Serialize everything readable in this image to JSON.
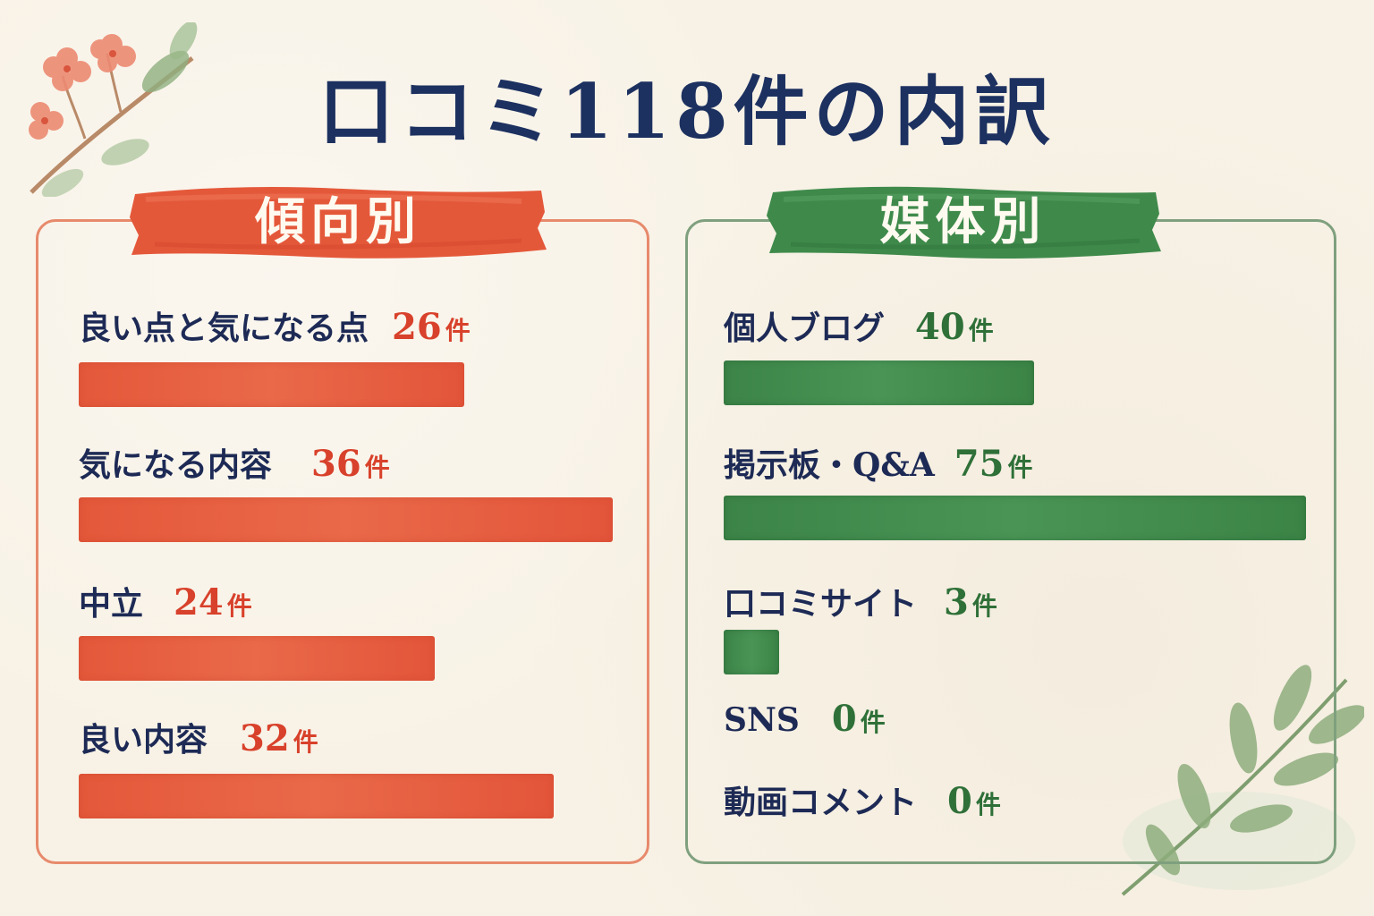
{
  "title": "口コミ118件の内訳",
  "colors": {
    "title": "#1d3160",
    "left_accent": "#e4583a",
    "right_accent": "#3f8a4b",
    "background": "#f8f2e6"
  },
  "icons": {
    "top_left": "cherry-blossom-branch-icon",
    "bottom_right": "leaf-branch-icon"
  },
  "chart_data": [
    {
      "type": "bar",
      "title": "傾向別",
      "unit": "件",
      "categories": [
        "良い点と気になる点",
        "気になる内容",
        "中立",
        "良い内容"
      ],
      "values": [
        26,
        36,
        24,
        32
      ],
      "counts_text": [
        "26",
        "36",
        "24",
        "32"
      ],
      "xlim": [
        0,
        36
      ]
    },
    {
      "type": "bar",
      "title": "媒体別",
      "unit": "件",
      "categories": [
        "個人ブログ",
        "掲示板・Q&A",
        "口コミサイト",
        "SNS",
        "動画コメント"
      ],
      "values": [
        40,
        75,
        3,
        0,
        0
      ],
      "counts_text": [
        "40",
        "75",
        "3",
        "0",
        "0"
      ],
      "xlim": [
        0,
        75
      ]
    }
  ]
}
